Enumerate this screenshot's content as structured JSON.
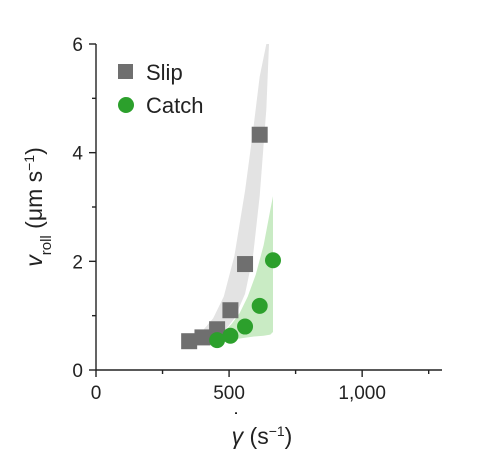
{
  "chart_data": {
    "type": "scatter",
    "xlabel": "γ̇ (s⁻¹)",
    "xlabel_parts": {
      "symbol": "γ",
      "unit_open": " (s",
      "unit_exp": "−1",
      "unit_close": ")"
    },
    "ylabel": "v_roll (μm s⁻¹)",
    "ylabel_parts": {
      "symbol": "v",
      "sub": "roll",
      "unit_open": " (μm s",
      "unit_exp": "−1",
      "unit_close": ")"
    },
    "xlim": [
      0,
      1300
    ],
    "ylim": [
      0,
      6
    ],
    "x_ticks": [
      0,
      500,
      1000
    ],
    "x_tick_labels": [
      "0",
      "500",
      "1,000"
    ],
    "x_minor_ticks": [
      250,
      750,
      1250
    ],
    "y_ticks": [
      0,
      2,
      4,
      6
    ],
    "y_tick_labels": [
      "0",
      "2",
      "4",
      "6"
    ],
    "y_minor_ticks": [
      1,
      3,
      5
    ],
    "grid": false,
    "legend": "top-left",
    "series": [
      {
        "name": "Slip",
        "marker": "square",
        "color": "#6f6f6f",
        "band_color": "#e3e3e3",
        "x": [
          350,
          400,
          455,
          505,
          560,
          615
        ],
        "y": [
          0.53,
          0.6,
          0.75,
          1.1,
          1.95,
          4.33
        ],
        "band": {
          "x": [
            375,
            400,
            440,
            480,
            520,
            560,
            590,
            615,
            640,
            650
          ],
          "lower": [
            0.5,
            0.52,
            0.57,
            0.7,
            0.95,
            1.4,
            2.1,
            3.2,
            4.8,
            6.0
          ],
          "upper": [
            0.63,
            0.72,
            0.95,
            1.35,
            2.1,
            3.3,
            4.4,
            5.4,
            6.0,
            6.0
          ]
        }
      },
      {
        "name": "Catch",
        "marker": "circle",
        "color": "#2ca02c",
        "band_color": "#c9ebc4",
        "x": [
          455,
          505,
          560,
          615,
          665
        ],
        "y": [
          0.55,
          0.63,
          0.8,
          1.18,
          2.02
        ],
        "band": {
          "x": [
            450,
            480,
            510,
            540,
            570,
            600,
            630,
            655,
            665
          ],
          "lower": [
            0.5,
            0.52,
            0.55,
            0.58,
            0.6,
            0.62,
            0.63,
            0.65,
            0.7
          ],
          "upper": [
            0.6,
            0.7,
            0.85,
            1.05,
            1.35,
            1.75,
            2.3,
            2.95,
            3.2
          ]
        }
      }
    ]
  }
}
